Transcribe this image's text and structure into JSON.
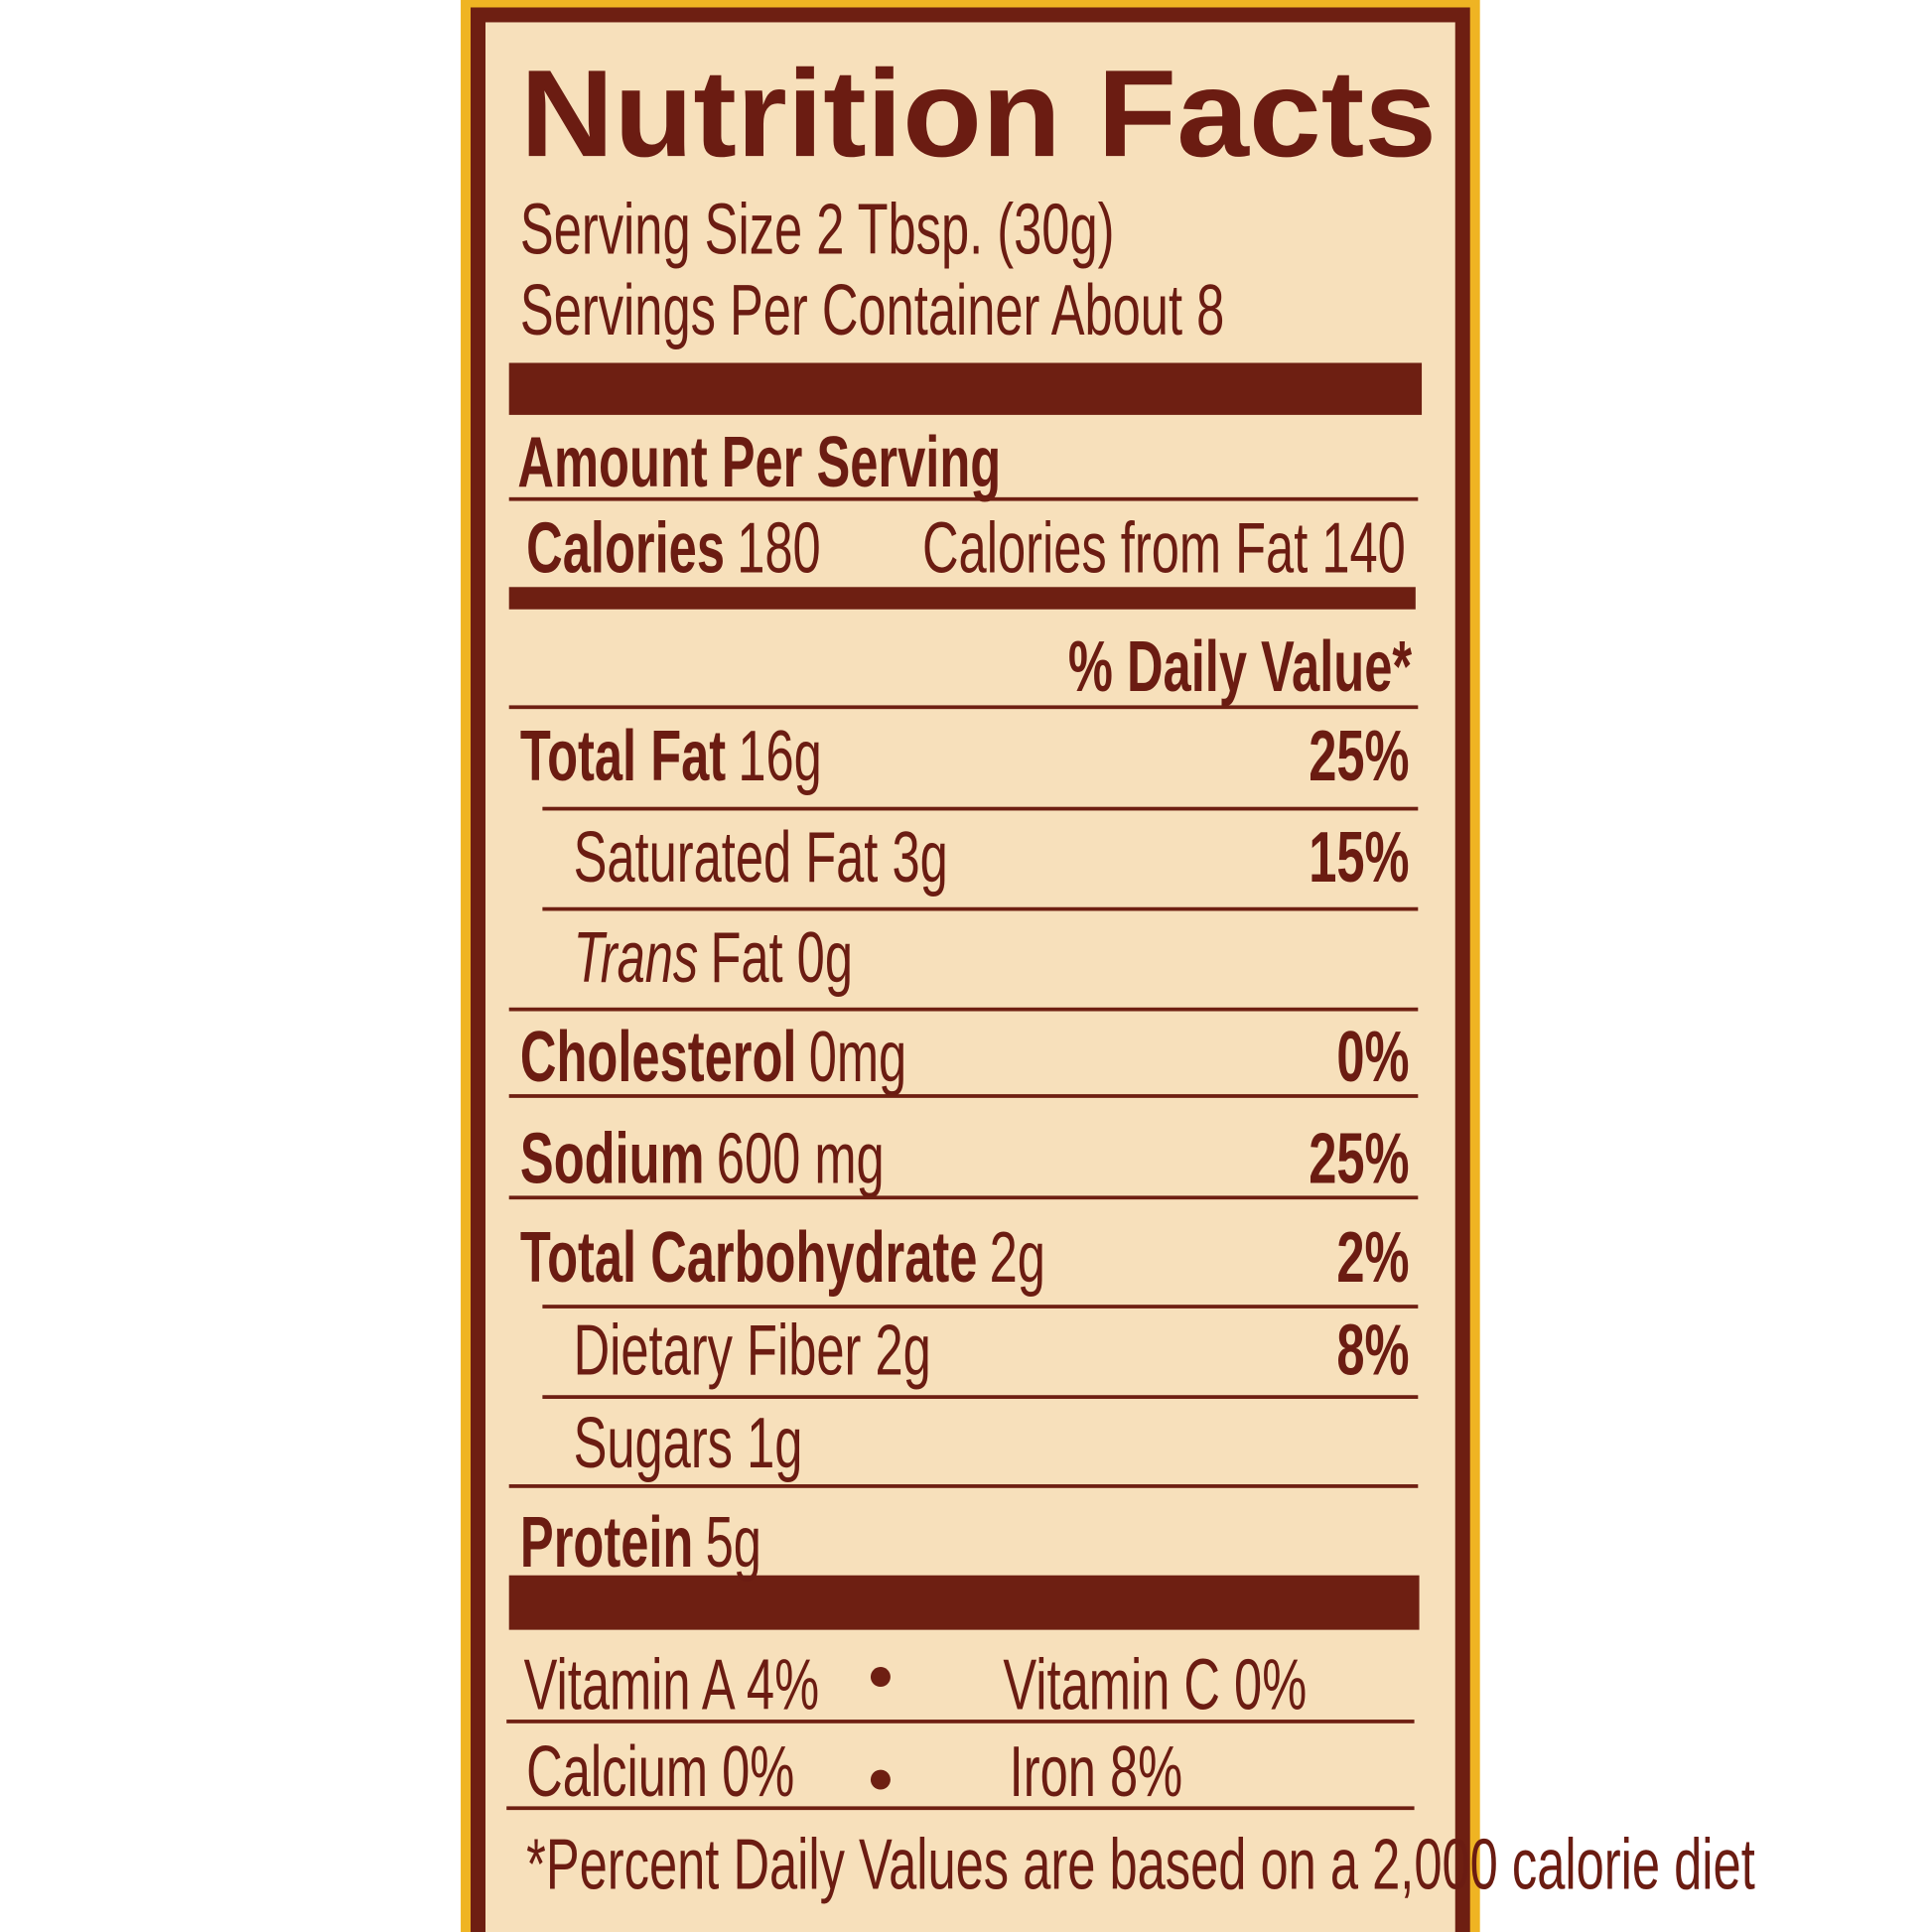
{
  "title": "Nutrition Facts",
  "serving_size": "Serving Size 2 Tbsp. (30g)",
  "servings_per_container": "Servings Per Container About 8",
  "amount_per_serving": "Amount Per Serving",
  "calories": {
    "label": "Calories",
    "value": "180",
    "from_fat": "Calories from Fat 140"
  },
  "daily_value_header": "% Daily Value*",
  "rows": [
    {
      "name": "Total Fat",
      "amount": "16g",
      "dv": "25%"
    },
    {
      "name": "Saturated Fat 3g",
      "dv": "15%"
    },
    {
      "name": "Trans",
      "amount": "Fat 0g"
    },
    {
      "name": "Cholesterol",
      "amount": "0mg",
      "dv": "0%"
    },
    {
      "name": "Sodium",
      "amount": "600 mg",
      "dv": "25%"
    },
    {
      "name": "Total Carbohydrate",
      "amount": "2g",
      "dv": "2%"
    },
    {
      "name": "Dietary Fiber 2g",
      "dv": "8%"
    },
    {
      "name": "Sugars 1g"
    },
    {
      "name": "Protein",
      "amount": "5g"
    }
  ],
  "vitamins": [
    [
      "Vitamin A 4%",
      "Vitamin C 0%"
    ],
    [
      "Calcium 0%",
      "Iron 8%"
    ]
  ],
  "footnote": "*Percent Daily Values are based on a 2,000 calorie diet"
}
